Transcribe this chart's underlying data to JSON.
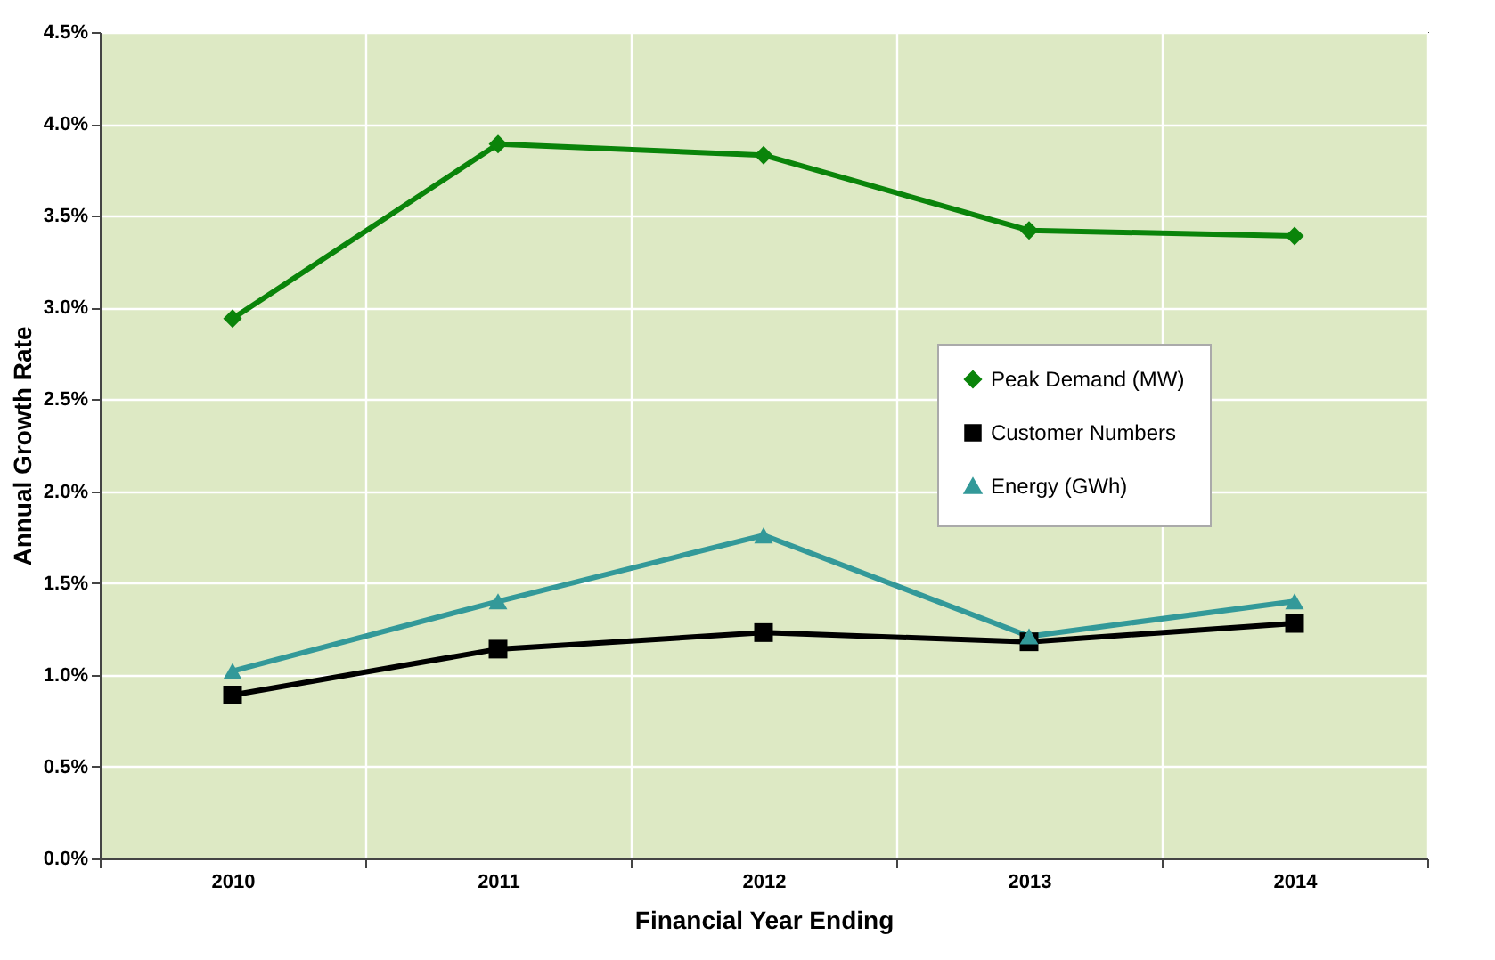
{
  "chart_data": {
    "type": "line",
    "xlabel": "Financial Year Ending",
    "ylabel": "Annual Growth Rate",
    "categories": [
      "2010",
      "2011",
      "2012",
      "2013",
      "2014"
    ],
    "series": [
      {
        "name": "Peak Demand (MW)",
        "color": "#0a840a",
        "marker": "diamond",
        "values": [
          2.94,
          3.89,
          3.83,
          3.42,
          3.39
        ]
      },
      {
        "name": "Customer Numbers",
        "color": "#000000",
        "marker": "square",
        "values": [
          0.89,
          1.14,
          1.23,
          1.18,
          1.28
        ]
      },
      {
        "name": "Energy (GWh)",
        "color": "#339999",
        "marker": "triangle",
        "values": [
          1.02,
          1.4,
          1.76,
          1.21,
          1.4
        ]
      }
    ],
    "ylim": [
      0,
      4.5
    ],
    "yticks": [
      {
        "value": 0,
        "label": "0.0%"
      },
      {
        "value": 0.5,
        "label": "0.5%"
      },
      {
        "value": 1,
        "label": "1.0%"
      },
      {
        "value": 1.5,
        "label": "1.5%"
      },
      {
        "value": 2,
        "label": "2.0%"
      },
      {
        "value": 2.5,
        "label": "2.5%"
      },
      {
        "value": 3,
        "label": "3.0%"
      },
      {
        "value": 3.5,
        "label": "3.5%"
      },
      {
        "value": 4,
        "label": "4.0%"
      },
      {
        "value": 4.5,
        "label": "4.5%"
      }
    ],
    "grid": true,
    "legend": "right",
    "line_style": "solid"
  }
}
